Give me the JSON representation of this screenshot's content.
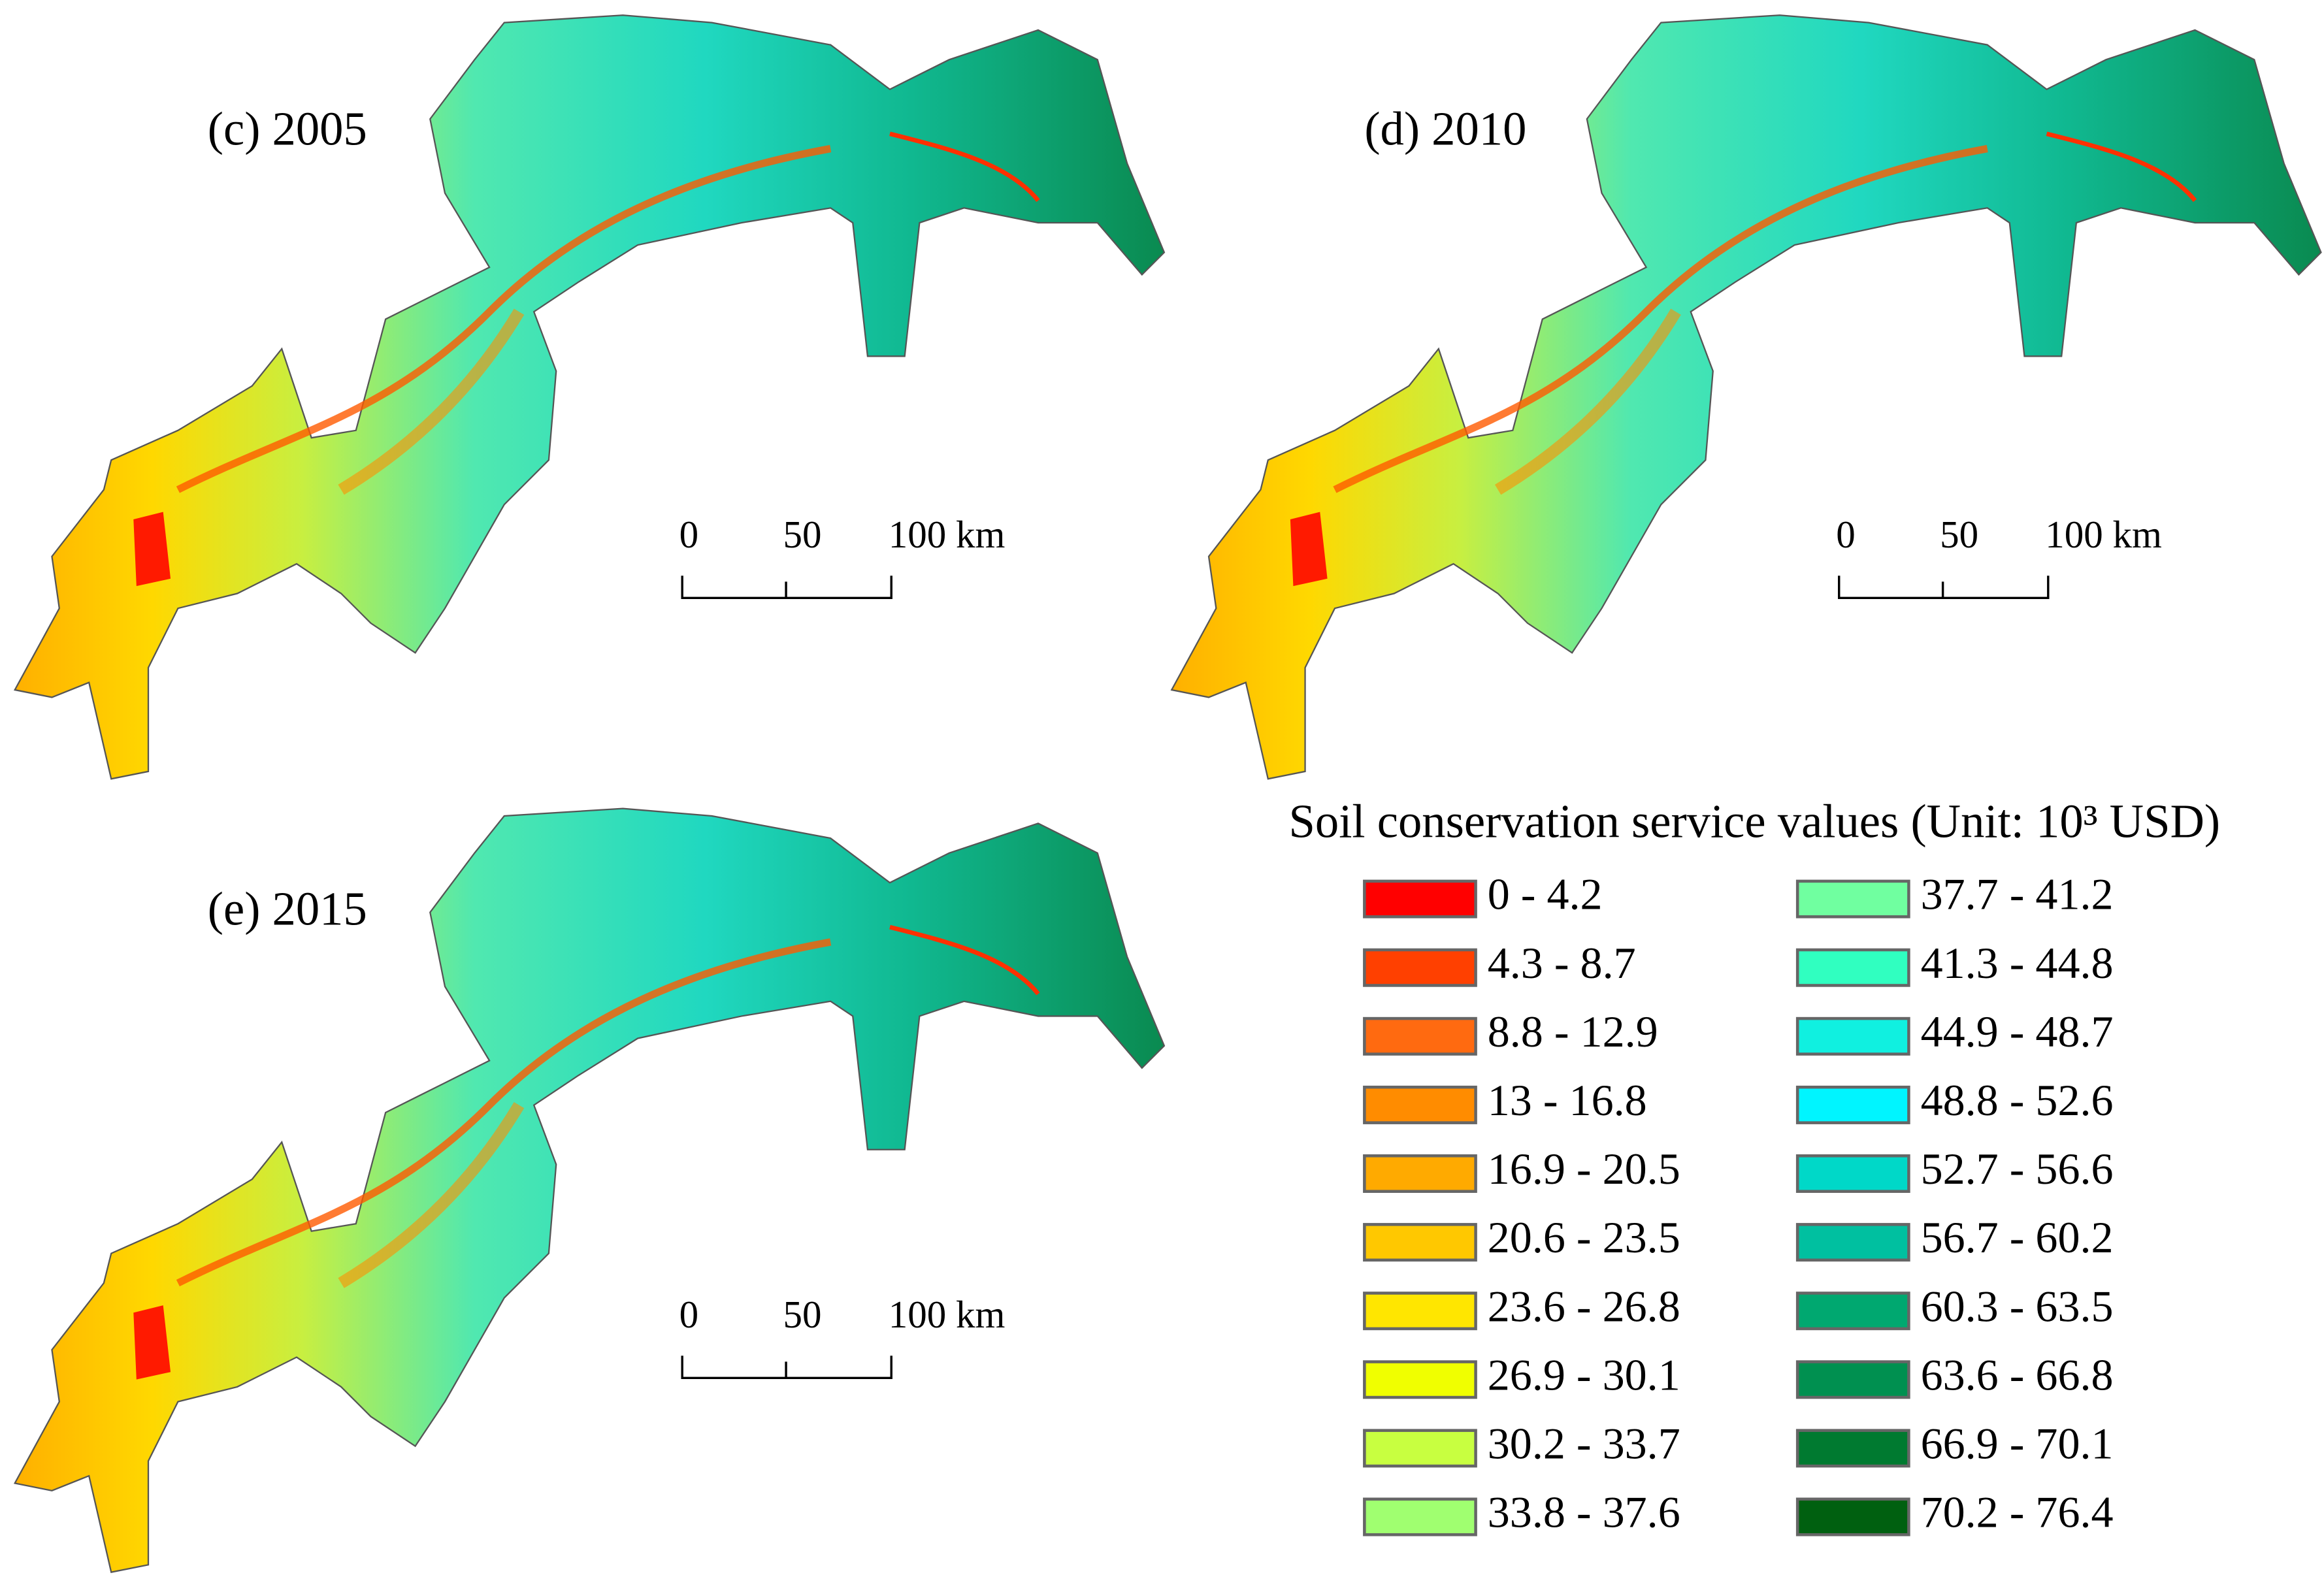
{
  "panels": [
    {
      "label": "(c) 2005",
      "scale_bar": [
        "0",
        "50",
        "100 km"
      ]
    },
    {
      "label": "(d) 2010",
      "scale_bar": [
        "0",
        "50",
        "100 km"
      ]
    },
    {
      "label": "(e) 2015",
      "scale_bar": [
        "0",
        "50",
        "100 km"
      ]
    }
  ],
  "legend": {
    "title": "Soil conservation service values (Unit: 10³ USD)",
    "items": [
      {
        "label": "0 - 4.2",
        "color": "#ff0000"
      },
      {
        "label": "4.3 - 8.7",
        "color": "#ff4000"
      },
      {
        "label": "8.8 - 12.9",
        "color": "#ff6a10"
      },
      {
        "label": "13 - 16.8",
        "color": "#ff8c00"
      },
      {
        "label": "16.9 - 20.5",
        "color": "#ffaa00"
      },
      {
        "label": "20.6 - 23.5",
        "color": "#ffc800"
      },
      {
        "label": "23.6 - 26.8",
        "color": "#ffe600"
      },
      {
        "label": "26.9 - 30.1",
        "color": "#f0ff00"
      },
      {
        "label": "30.2 - 33.7",
        "color": "#c8ff40"
      },
      {
        "label": "33.8 - 37.6",
        "color": "#a0ff70"
      },
      {
        "label": "37.7 - 41.2",
        "color": "#70ffa0"
      },
      {
        "label": "41.3 - 44.8",
        "color": "#30ffc0"
      },
      {
        "label": "44.9 - 48.7",
        "color": "#10f0e0"
      },
      {
        "label": "48.8 - 52.6",
        "color": "#00f5ff"
      },
      {
        "label": "52.7 - 56.6",
        "color": "#00d8c8"
      },
      {
        "label": "56.7 - 60.2",
        "color": "#00c0a0"
      },
      {
        "label": "60.3 - 63.5",
        "color": "#00a870"
      },
      {
        "label": "63.6 - 66.8",
        "color": "#009050"
      },
      {
        "label": "66.9 - 70.1",
        "color": "#007a30"
      },
      {
        "label": "70.2 - 76.4",
        "color": "#006010"
      }
    ]
  }
}
